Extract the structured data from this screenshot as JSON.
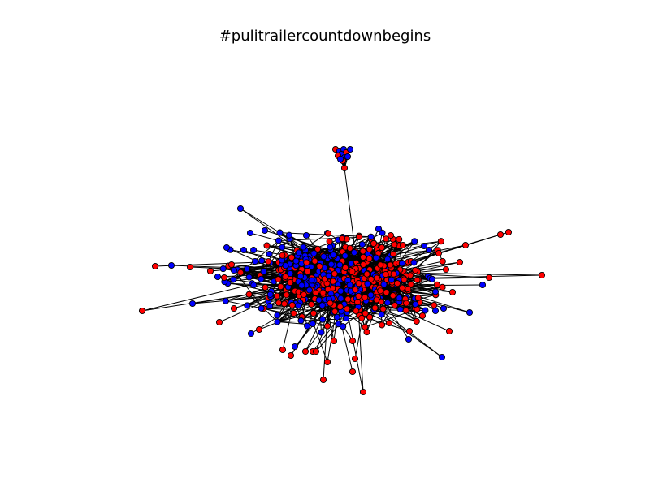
{
  "figure": {
    "title": "#pulitrailercountdownbegins",
    "background": "#ffffff"
  },
  "graph": {
    "type": "network",
    "node_colors": [
      "#ff0000",
      "#0000ff"
    ],
    "edge_color": "#000000",
    "node_outline": "#000000"
  }
}
